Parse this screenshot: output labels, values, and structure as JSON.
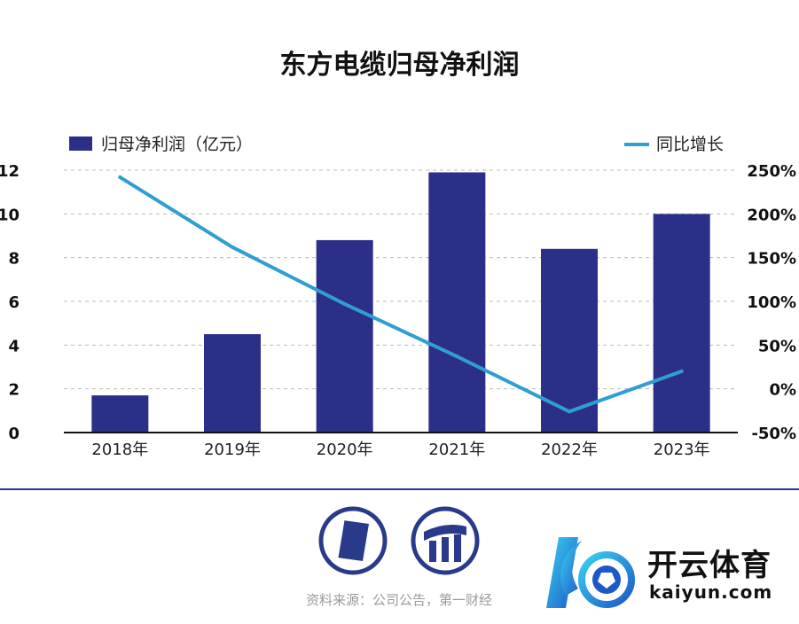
{
  "chart_data": {
    "type": "bar",
    "title": "东方电缆归母净利润",
    "categories": [
      "2018年",
      "2019年",
      "2020年",
      "2021年",
      "2022年",
      "2023年"
    ],
    "series": [
      {
        "name": "归母净利润（亿元）",
        "type": "bar",
        "axis": "left",
        "color": "#2b2f88",
        "values": [
          1.7,
          4.5,
          8.8,
          11.9,
          8.4,
          10.0
        ]
      },
      {
        "name": "同比增长",
        "type": "line",
        "axis": "right",
        "color": "#2f9fd0",
        "values": [
          242,
          162,
          97,
          37,
          -26,
          20
        ]
      }
    ],
    "y_left": {
      "min": 0,
      "max": 12,
      "ticks": [
        "0",
        "2",
        "4",
        "6",
        "8",
        "10",
        "12"
      ]
    },
    "y_right": {
      "min": -50,
      "max": 250,
      "ticks": [
        "-50%",
        "0%",
        "50%",
        "100%",
        "150%",
        "200%",
        "250%"
      ]
    },
    "grid": true,
    "grid_style": "dashed",
    "legend": [
      "top-left",
      "top-right"
    ]
  },
  "footer": {
    "source": "资料来源：公司公告，第一财经",
    "watermark_text": "开云体育",
    "watermark_url": "kaiyun.com"
  },
  "colors": {
    "bar": "#2b2f88",
    "line": "#2f9fd0",
    "divider": "#2a3a8a",
    "grid": "#bbbbbb"
  }
}
